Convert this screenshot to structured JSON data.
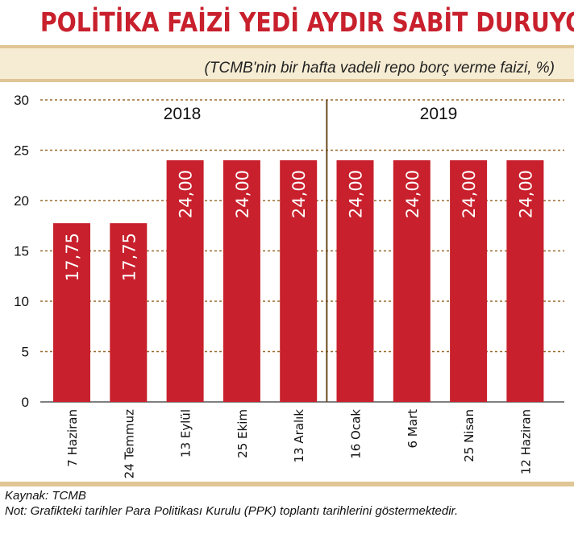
{
  "title": "POLİTİKA FAİZİ YEDİ AYDIR SABİT DURUYOR",
  "subtitle": "(TCMB'nin bir hafta vadeli repo borç verme faizi, %)",
  "source": "Kaynak: TCMB",
  "note": "Not: Grafikteki tarihler Para Politikası Kurulu (PPK) toplantı tarihlerini göstermektedir.",
  "colors": {
    "bar": "#c8202c",
    "title": "#c8202c",
    "band": "#f6ecd3",
    "rule": "#e0c595",
    "grid": "#9a6a2e",
    "divider": "#6b4a1e"
  },
  "chart_data": {
    "type": "bar",
    "categories": [
      "7 Haziran",
      "24 Temmuz",
      "13 Eylül",
      "25 Ekim",
      "13 Aralık",
      "16 Ocak",
      "6 Mart",
      "25 Nisan",
      "12 Haziran"
    ],
    "values": [
      17.75,
      17.75,
      24.0,
      24.0,
      24.0,
      24.0,
      24.0,
      24.0,
      24.0
    ],
    "value_labels": [
      "17,75",
      "17,75",
      "24,00",
      "24,00",
      "24,00",
      "24,00",
      "24,00",
      "24,00",
      "24,00"
    ],
    "y_ticks": [
      0,
      5,
      10,
      15,
      20,
      25,
      30
    ],
    "ylim": [
      0,
      30
    ],
    "grid": true,
    "groups": [
      {
        "label": "2018",
        "from": 0,
        "to": 4
      },
      {
        "label": "2019",
        "from": 5,
        "to": 8
      }
    ]
  }
}
